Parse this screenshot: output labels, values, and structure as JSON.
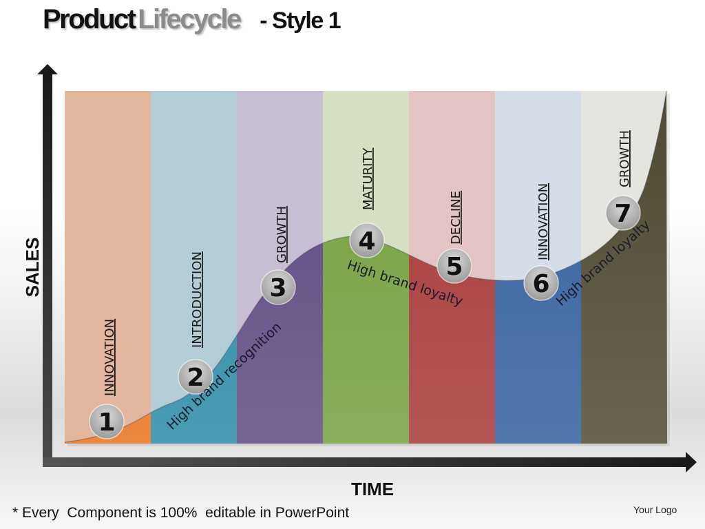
{
  "title": {
    "word1": "Product",
    "word2": "Lifecycle",
    "subtitle": "- Style 1"
  },
  "axes": {
    "y_label": "SALES",
    "x_label": "TIME"
  },
  "stages": [
    {
      "number": "1",
      "label": "INNOVATION",
      "top_color": "#e3b79d",
      "bottom_color": "#e8731c"
    },
    {
      "number": "2",
      "label": "INTRODUCTION",
      "top_color": "#b5cdd6",
      "bottom_color": "#2b8aa6"
    },
    {
      "number": "3",
      "label": "GROWTH",
      "top_color": "#c8bed3",
      "bottom_color": "#5e4a82"
    },
    {
      "number": "4",
      "label": "MATURITY",
      "top_color": "#d4dfc3",
      "bottom_color": "#76a040"
    },
    {
      "number": "5",
      "label": "DECLINE",
      "top_color": "#e2c4c4",
      "bottom_color": "#a63a38"
    },
    {
      "number": "6",
      "label": "INNOVATION",
      "top_color": "#d5dde8",
      "bottom_color": "#34609e"
    },
    {
      "number": "7",
      "label": "GROWTH",
      "top_color": "#e5e5df",
      "bottom_color": "#4f4a33"
    }
  ],
  "annotations": {
    "recognition": "High brand recognition",
    "loyalty_1": "High brand loyalty",
    "loyalty_2": "High brand loyalty"
  },
  "footer": {
    "note": "* Every  Component is 100%  editable in PowerPoint",
    "logo": "Your Logo"
  }
}
